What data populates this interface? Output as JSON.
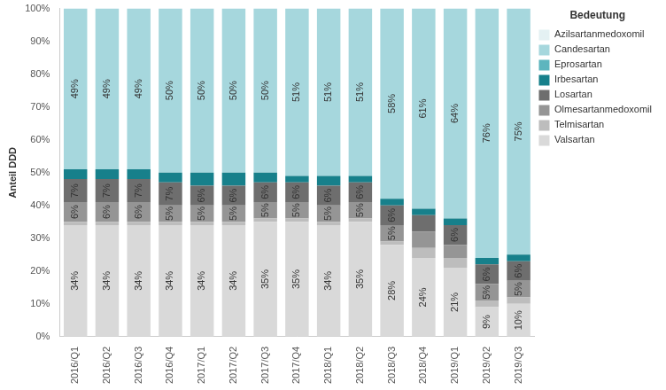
{
  "chart_data": {
    "type": "bar",
    "stacked": true,
    "data_labels": true,
    "grid": false,
    "legend": "right",
    "legend_title": "Bedeutung",
    "y_label": "Anteil DDD",
    "ylim": [
      0,
      100
    ],
    "yticks": [
      {
        "value": 0,
        "label": "0%"
      },
      {
        "value": 10,
        "label": "10%"
      },
      {
        "value": 20,
        "label": "20%"
      },
      {
        "value": 30,
        "label": "30%"
      },
      {
        "value": 40,
        "label": "40%"
      },
      {
        "value": 50,
        "label": "50%"
      },
      {
        "value": 60,
        "label": "60%"
      },
      {
        "value": 70,
        "label": "70%"
      },
      {
        "value": 80,
        "label": "80%"
      },
      {
        "value": 90,
        "label": "90%"
      },
      {
        "value": 100,
        "label": "100%"
      }
    ],
    "categories": [
      "2016/Q1",
      "2016/Q2",
      "2016/Q3",
      "2016/Q4",
      "2017/Q1",
      "2017/Q2",
      "2017/Q3",
      "2017/Q4",
      "2018/Q1",
      "2018/Q2",
      "2018/Q3",
      "2018/Q4",
      "2019/Q1",
      "2019/Q2",
      "2019/Q3"
    ],
    "series": [
      {
        "name": "Valsartan",
        "color": "#d9d9d9",
        "values": [
          34,
          34,
          34,
          34,
          34,
          34,
          35,
          35,
          34,
          35,
          28,
          24,
          21,
          9,
          10
        ],
        "value_labels": [
          "34%",
          "34%",
          "34%",
          "34%",
          "34%",
          "34%",
          "35%",
          "35%",
          "34%",
          "35%",
          "28%",
          "24%",
          "21%",
          "9%",
          "10%"
        ]
      },
      {
        "name": "Telmisartan",
        "color": "#bdbdbd",
        "values": [
          1,
          1,
          1,
          1,
          1,
          1,
          1,
          1,
          1,
          1,
          1,
          3,
          3,
          2,
          2
        ],
        "value_labels": [
          null,
          null,
          null,
          null,
          null,
          null,
          null,
          null,
          null,
          null,
          null,
          null,
          null,
          null,
          null
        ]
      },
      {
        "name": "Olmesartanmedoxomil",
        "color": "#959595",
        "values": [
          6,
          6,
          6,
          5,
          5,
          5,
          5,
          5,
          5,
          5,
          5,
          5,
          4,
          5,
          5
        ],
        "value_labels": [
          "6%",
          "6%",
          "6%",
          "5%",
          "5%",
          "5%",
          "5%",
          "5%",
          "5%",
          "5%",
          "5%",
          null,
          null,
          "5%",
          "5%"
        ]
      },
      {
        "name": "Losartan",
        "color": "#6e6e6e",
        "values": [
          7,
          7,
          7,
          7,
          6,
          6,
          6,
          6,
          6,
          6,
          6,
          5,
          6,
          6,
          6
        ],
        "value_labels": [
          "7%",
          "7%",
          "7%",
          "7%",
          "6%",
          "6%",
          "6%",
          "6%",
          "6%",
          "6%",
          "6%",
          null,
          "6%",
          "6%",
          "6%"
        ]
      },
      {
        "name": "Irbesartan",
        "color": "#17808b",
        "values": [
          3,
          3,
          3,
          3,
          4,
          4,
          3,
          2,
          3,
          2,
          2,
          2,
          2,
          2,
          2
        ],
        "value_labels": [
          null,
          null,
          null,
          null,
          null,
          null,
          null,
          null,
          null,
          null,
          null,
          null,
          null,
          null,
          null
        ]
      },
      {
        "name": "Eprosartan",
        "color": "#5db5be",
        "values": [
          0,
          0,
          0,
          0,
          0,
          0,
          0,
          0,
          0,
          0,
          0,
          0,
          0,
          0,
          0
        ],
        "value_labels": [
          null,
          null,
          null,
          null,
          null,
          null,
          null,
          null,
          null,
          null,
          null,
          null,
          null,
          null,
          null
        ]
      },
      {
        "name": "Candesartan",
        "color": "#a6d7dd",
        "values": [
          49,
          49,
          49,
          50,
          50,
          50,
          50,
          51,
          51,
          51,
          58,
          61,
          64,
          76,
          75
        ],
        "value_labels": [
          "49%",
          "49%",
          "49%",
          "50%",
          "50%",
          "50%",
          "50%",
          "51%",
          "51%",
          "51%",
          "58%",
          "61%",
          "64%",
          "76%",
          "75%"
        ]
      },
      {
        "name": "Azilsartanmedoxomil",
        "color": "#e4f1f3",
        "values": [
          0,
          0,
          0,
          0,
          0,
          0,
          0,
          0,
          0,
          0,
          0,
          0,
          0,
          0,
          0
        ],
        "value_labels": [
          null,
          null,
          null,
          null,
          null,
          null,
          null,
          null,
          null,
          null,
          null,
          null,
          null,
          null,
          null
        ]
      }
    ]
  }
}
